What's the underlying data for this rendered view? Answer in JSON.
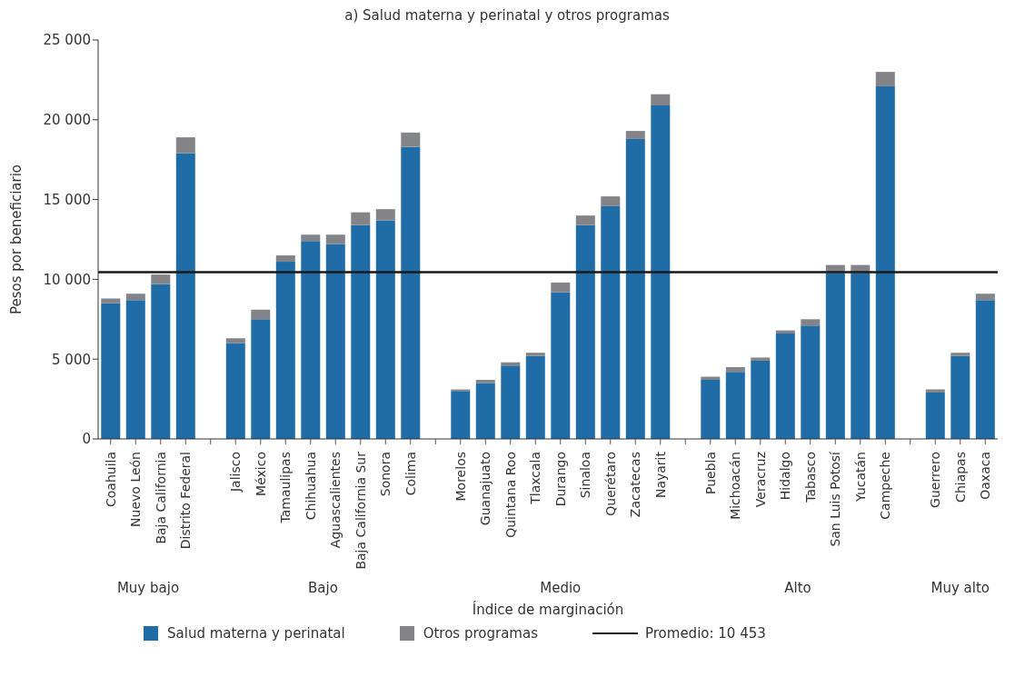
{
  "chart_data": {
    "type": "bar",
    "stacked": true,
    "title": "a) Salud materna y perinatal y otros programas",
    "xlabel": "Índice de marginación",
    "ylabel": "Pesos por beneficiario",
    "categories": [
      "Coahuila",
      "Nuevo León",
      "Baja California",
      "Distrito Federal",
      null,
      "Jalisco",
      "México",
      "Tamaulipas",
      "Chihuahua",
      "Aguascalientes",
      "Baja California Sur",
      "Sonora",
      "Colima",
      null,
      "Morelos",
      "Guanajuato",
      "Quintana Roo",
      "Tlaxcala",
      "Durango",
      "Sinaloa",
      "Querétaro",
      "Zacatecas",
      "Nayarit",
      null,
      "Puebla",
      "Michoacán",
      "Veracruz",
      "Hidalgo",
      "Tabasco",
      "San Luis Potosí",
      "Yucatán",
      "Campeche",
      null,
      "Guerrero",
      "Chiapas",
      "Oaxaca"
    ],
    "series": [
      {
        "name": "Salud materna y perinatal",
        "color": "#1f6ca7",
        "values": [
          8500,
          8700,
          9700,
          17900,
          null,
          6000,
          7500,
          11100,
          12400,
          12200,
          13400,
          13700,
          18300,
          null,
          3000,
          3500,
          4600,
          5200,
          9200,
          13400,
          14600,
          18800,
          20900,
          null,
          3700,
          4200,
          4900,
          6600,
          7100,
          10400,
          10400,
          22100,
          null,
          2900,
          5200,
          8700
        ]
      },
      {
        "name": "Otros programas",
        "color": "#838488",
        "values": [
          300,
          400,
          600,
          1000,
          null,
          300,
          600,
          400,
          400,
          600,
          800,
          700,
          900,
          null,
          100,
          200,
          200,
          200,
          600,
          600,
          600,
          500,
          700,
          null,
          200,
          300,
          200,
          200,
          400,
          500,
          500,
          900,
          null,
          200,
          200,
          400
        ]
      }
    ],
    "ylim": [
      0,
      25000
    ],
    "yticks": [
      {
        "value": 0,
        "label": "0"
      },
      {
        "value": 5000,
        "label": "5 000"
      },
      {
        "value": 10000,
        "label": "10 000"
      },
      {
        "value": 15000,
        "label": "15 000"
      },
      {
        "value": 20000,
        "label": "20 000"
      },
      {
        "value": 25000,
        "label": "25 000"
      }
    ],
    "ref_lines": [
      {
        "axis": "y",
        "value": 10453,
        "label": "Promedio: 10 453",
        "color": "#1a1a1a",
        "line_style": "solid"
      }
    ],
    "annotations": [
      "Muy bajo",
      "Bajo",
      "Medio",
      "Alto",
      "Muy alto"
    ],
    "grid": false,
    "legend": "bottom"
  }
}
